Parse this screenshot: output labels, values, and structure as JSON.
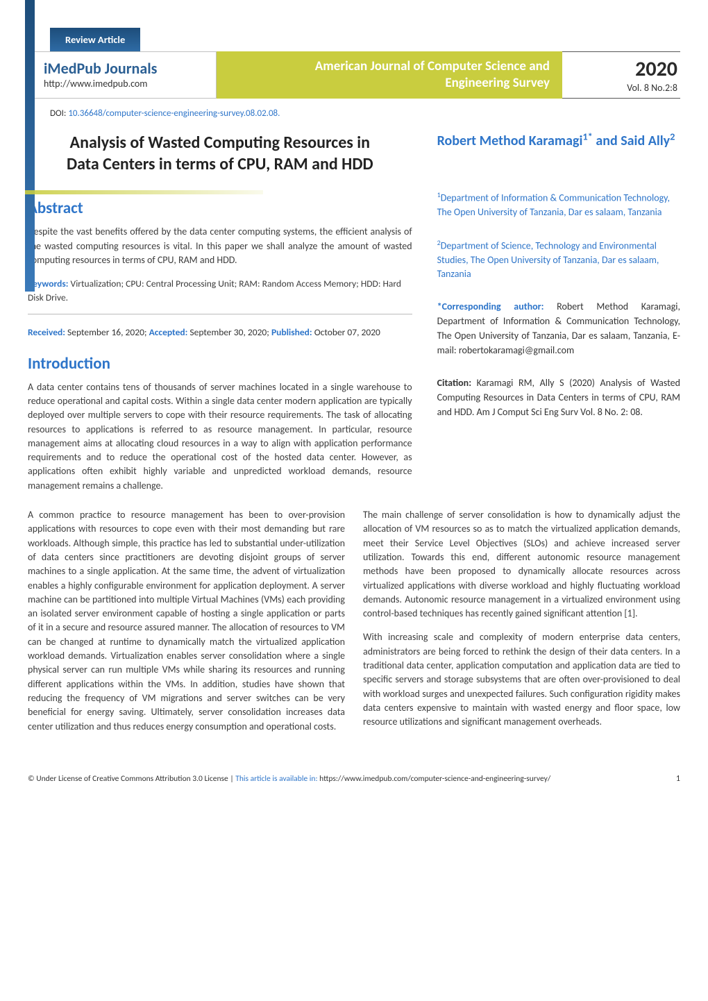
{
  "header": {
    "review_label": "Review Article",
    "journal_name": "iMedPub Journals",
    "journal_url": "http://www.imedpub.com",
    "banner_line1": "American Journal of Computer Science and",
    "banner_line2": "Engineering Survey",
    "year": "2020",
    "vol": "Vol. 8 No.2:8",
    "doi_label": "DOI: ",
    "doi_value": "10.36648/computer-science-engineering-survey.08.02.08."
  },
  "article": {
    "title_l1": "Analysis of Wasted Computing Resources in",
    "title_l2": "Data Centers in terms of CPU, RAM and HDD",
    "authors_l1": "Robert Method Karamagi",
    "authors_sup1": "1*",
    "authors_l2": "and Said Ally",
    "authors_sup2": "2"
  },
  "abstract": {
    "heading": "Abstract",
    "text": "Despite the vast benefits offered by the data center computing systems, the efficient analysis of the wasted computing resources is vital. In this paper we shall analyze the amount of wasted computing resources in terms of CPU, RAM and HDD.",
    "kw_label": "Keywords:",
    "kw_text": " Virtualization; CPU: Central Processing Unit; RAM: Random Access Memory; HDD: Hard Disk Drive."
  },
  "dates": {
    "received_l": "Received:",
    "received_v": " September 16, 2020; ",
    "accepted_l": "Accepted:",
    "accepted_v": " September 30, 2020; ",
    "published_l": "Published:",
    "published_v": " October 07, 2020"
  },
  "intro": {
    "heading": "Introduction",
    "p1": "A data center contains tens of thousands of server machines located in a single warehouse to reduce operational and capital costs. Within a single data center modern application are typically deployed over multiple servers to cope with their resource requirements. The task of allocating resources to applications is referred to as resource management. In particular, resource management aims at allocating cloud resources in a way to align with application performance requirements and to reduce the operational cost of the hosted data center. However, as applications often exhibit highly variable and unpredicted workload demands, resource management remains a challenge.",
    "p2": "A common practice to resource management has been to over-provision applications with resources to cope even with their most demanding but rare workloads. Although simple, this practice has led to substantial under-utilization of data centers since practitioners are devoting disjoint groups of server machines to a single application. At the same time, the advent of virtualization enables a highly configurable environment for application deployment. A server machine can be partitioned into multiple Virtual Machines (VMs) each providing an isolated server environment capable of hosting a single application or parts of it in a secure and resource assured manner. The allocation of resources to VM can be changed at runtime to dynamically match the virtualized application workload demands. Virtualization enables server consolidation where a single physical server can run multiple VMs while sharing its resources and running different applications within the VMs. In addition, studies have shown that reducing the frequency of VM migrations and server switches can be very beneficial for energy saving. Ultimately, server consolidation increases data center utilization and thus reduces energy consumption and operational costs."
  },
  "affiliations": {
    "a1": "Department of Information & Communication Technology, The Open University of Tanzania, Dar es salaam, Tanzania",
    "a2": "Department of Science, Technology and Environmental Studies, The Open University of Tanzania, Dar es salaam, Tanzania"
  },
  "correspondence": {
    "label": "*Corresponding author:",
    "text": " Robert Method Karamagi, Department of Information & Communication Technology, The Open University of Tanzania, Dar es salaam, Tanzania, E-mail: robertokaramagi@gmail.com"
  },
  "citation": {
    "label": "Citation:",
    "text": " Karamagi RM, Ally S (2020) Analysis of Wasted Computing Resources in Data Centers in terms of CPU, RAM and HDD. Am J Comput Sci Eng Surv Vol. 8 No. 2: 08."
  },
  "right_col": {
    "p1": "The main challenge of server consolidation is how to dynamically adjust the allocation of VM resources so as to match the virtualized application demands, meet their Service Level Objectives (SLOs) and achieve increased server utilization. Towards this end, different autonomic resource management methods have been proposed to dynamically allocate resources across virtualized applications with diverse workload and highly fluctuating workload demands. Autonomic resource management in a virtualized environment using control-based techniques has recently gained significant attention [1].",
    "p2": "With increasing scale and complexity of modern enterprise data centers, administrators are being forced to rethink the design of their data centers. In a traditional data center, application computation and application data are tied to specific servers and storage subsystems that are often over-provisioned to deal with workload surges and unexpected failures. Such configuration rigidity makes data centers expensive to maintain with wasted energy and floor space, low resource utilizations and significant management overheads."
  },
  "footer": {
    "license": "© Under License of Creative Commons Attribution 3.0 License | ",
    "avail_label": "This article is available in: ",
    "avail_url": "https://www.imedpub.com/computer-science-and-engineering-survey/",
    "page_num": "1"
  },
  "colors": {
    "brand_blue": "#2e75c9",
    "dark_blue": "#1d4d7a",
    "olive": "#c9cd3f",
    "text": "#3a3a3a"
  }
}
